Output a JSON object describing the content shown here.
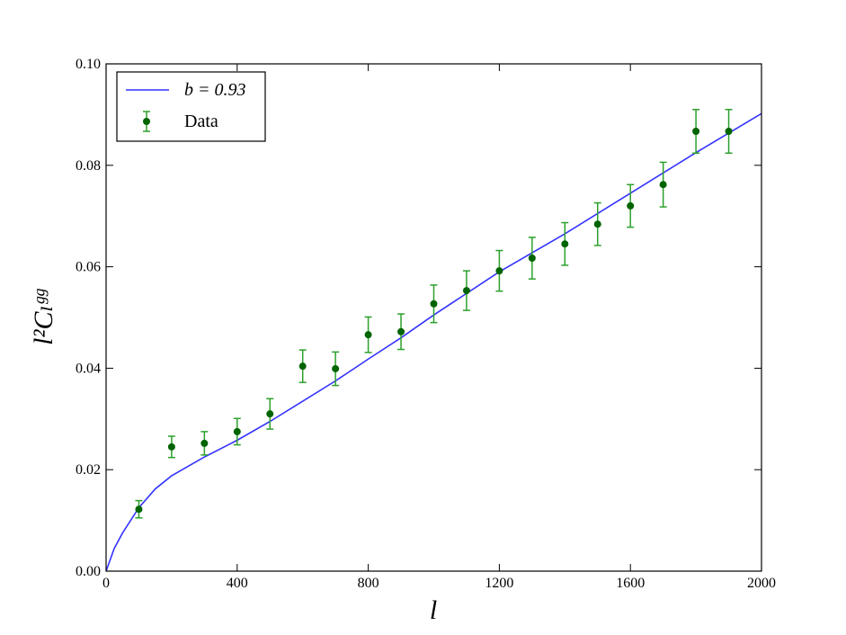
{
  "chart_data": {
    "type": "line",
    "x_label": "l",
    "y_label": "l²Cₗᵍᵍ",
    "xlim": [
      0,
      2000
    ],
    "ylim": [
      0,
      0.1
    ],
    "xticks": [
      0,
      400,
      800,
      1200,
      1600,
      2000
    ],
    "yticks": [
      {
        "value": 0,
        "label": "0.00"
      },
      0.02,
      0.04,
      0.06,
      0.08,
      {
        "value": 0.1,
        "label": "0.10"
      }
    ],
    "legend": "upper left",
    "series": [
      {
        "name": "b = 0.93",
        "type": "line",
        "color": "#3333ff",
        "x": [
          0,
          25,
          50,
          100,
          150,
          200,
          300,
          400,
          500,
          600,
          700,
          800,
          900,
          1000,
          1200,
          1400,
          1600,
          1800,
          2000
        ],
        "values": [
          0,
          0.0045,
          0.0075,
          0.0125,
          0.0162,
          0.0188,
          0.0225,
          0.0258,
          0.0295,
          0.0335,
          0.0375,
          0.0418,
          0.046,
          0.0505,
          0.059,
          0.0665,
          0.0745,
          0.0825,
          0.0902
        ]
      },
      {
        "name": "Data",
        "type": "errorbar",
        "color": "#006400",
        "error_color": "#2ca02c",
        "x": [
          100,
          200,
          300,
          400,
          500,
          600,
          700,
          800,
          900,
          1000,
          1100,
          1200,
          1300,
          1400,
          1500,
          1600,
          1700,
          1800,
          1900
        ],
        "values": [
          0.0122,
          0.0245,
          0.0252,
          0.0275,
          0.031,
          0.0404,
          0.0399,
          0.0466,
          0.0472,
          0.0527,
          0.0553,
          0.0592,
          0.0617,
          0.0645,
          0.0684,
          0.072,
          0.0762,
          0.0867,
          0.0867
        ],
        "errors": [
          0.0017,
          0.0021,
          0.0023,
          0.0026,
          0.003,
          0.0032,
          0.0033,
          0.0035,
          0.0035,
          0.0037,
          0.0039,
          0.004,
          0.0041,
          0.0042,
          0.0042,
          0.0042,
          0.0044,
          0.0043,
          0.0043
        ]
      }
    ]
  }
}
